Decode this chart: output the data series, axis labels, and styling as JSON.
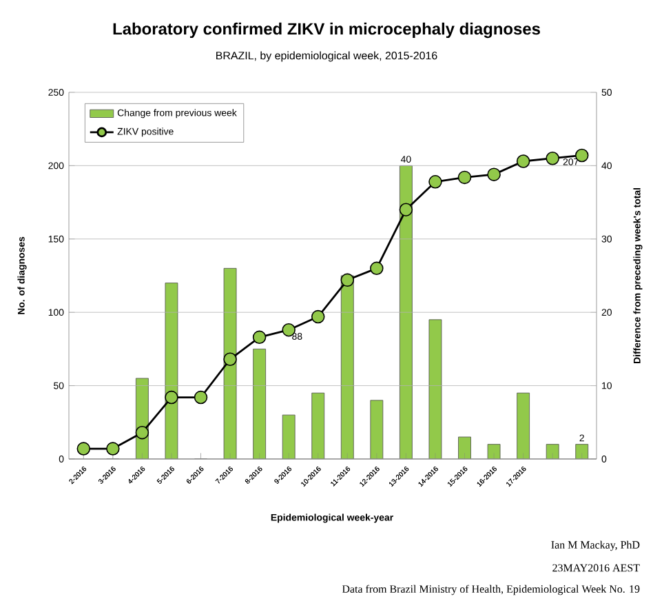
{
  "chart_data": {
    "type": "bar",
    "title": "Laboratory confirmed ZIKV in microcephaly diagnoses",
    "subtitle": "BRAZIL, by epidemiological week, 2015-2016",
    "xlabel": "Epidemiological week-year",
    "ylabel": "No. of diagnoses",
    "y2label": "Difference from preceding week's total",
    "categories": [
      "2-2016",
      "3-2016",
      "4-2016",
      "5-2016",
      "6-2016",
      "7-2016",
      "8-2016",
      "9-2016",
      "10-2016",
      "11-2016",
      "12-2016",
      "13-2016",
      "14-2016",
      "15-2016",
      "16-2016",
      "17-2016",
      null,
      null
    ],
    "series": [
      {
        "name": "Change from previous week",
        "axis": "y2",
        "color": "#92c94a",
        "values": [
          null,
          0,
          11,
          24,
          0,
          26,
          15,
          6,
          9,
          25,
          8,
          40,
          19,
          3,
          2,
          9,
          2,
          2
        ],
        "value_labels": [
          null,
          null,
          null,
          null,
          null,
          null,
          null,
          null,
          null,
          null,
          null,
          "40",
          null,
          null,
          null,
          null,
          null,
          "2"
        ]
      },
      {
        "name": "ZIKV positive",
        "type": "line",
        "color": "#000000",
        "values": [
          7,
          7,
          18,
          42,
          42,
          68,
          83,
          88,
          97,
          122,
          130,
          170,
          189,
          192,
          194,
          203,
          205,
          207
        ],
        "value_labels": [
          null,
          null,
          null,
          null,
          null,
          null,
          null,
          "88",
          null,
          null,
          null,
          null,
          null,
          null,
          null,
          null,
          null,
          "207"
        ]
      }
    ],
    "marker": "circle",
    "ylim": [
      0,
      250
    ],
    "yticks": [
      0,
      50,
      100,
      150,
      200,
      250
    ],
    "y2lim": [
      0,
      50
    ],
    "y2ticks": [
      0,
      10,
      20,
      30,
      40,
      50
    ],
    "grid": "y",
    "legend": "top left",
    "annotations": [
      "Ian M Mackay, PhD",
      "23MAY2016 AEST",
      "Data from Brazil Ministry of Health, Epidemiological Week No. 19"
    ]
  }
}
